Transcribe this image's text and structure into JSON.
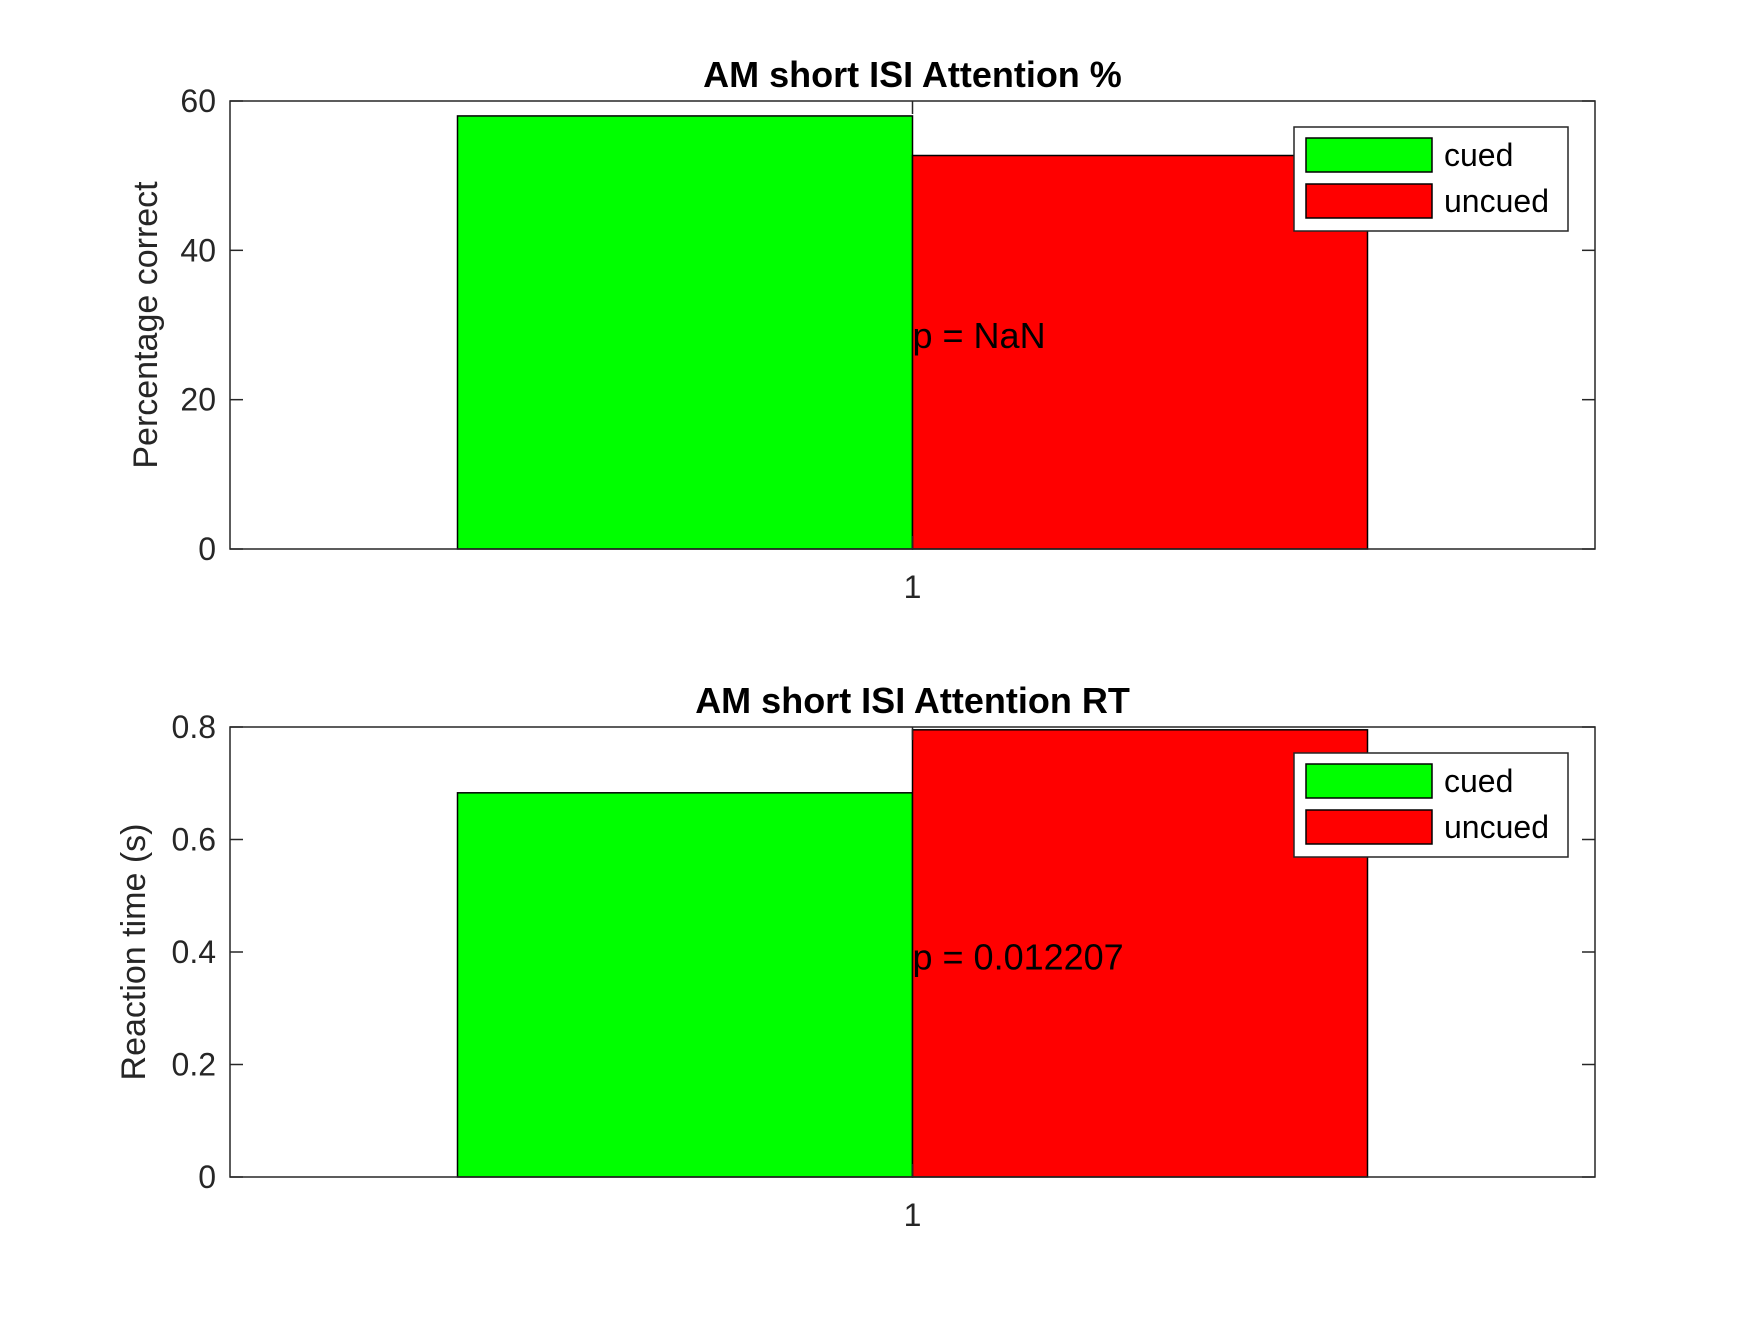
{
  "chart_data": [
    {
      "type": "bar",
      "title": "AM short ISI Attention %",
      "xlabel": "",
      "ylabel": "Percentage correct",
      "categories": [
        "1"
      ],
      "xticks": [
        "1"
      ],
      "ylim": [
        0,
        60
      ],
      "yticks": [
        "0",
        "20",
        "40",
        "60"
      ],
      "series": [
        {
          "name": "cued",
          "values": [
            58
          ],
          "color": "#00ff00"
        },
        {
          "name": "uncued",
          "values": [
            52.7
          ],
          "color": "#ff0000"
        }
      ],
      "annotation": {
        "text": "p = NaN",
        "x": 1,
        "y": 28.5
      },
      "legend": {
        "position": "top-right",
        "entries": [
          "cued",
          "uncued"
        ]
      },
      "grid": false
    },
    {
      "type": "bar",
      "title": "AM short ISI Attention RT",
      "xlabel": "",
      "ylabel": "Reaction time (s)",
      "categories": [
        "1"
      ],
      "xticks": [
        "1"
      ],
      "ylim": [
        0,
        0.8
      ],
      "yticks": [
        "0",
        "0.2",
        "0.4",
        "0.6",
        "0.8"
      ],
      "series": [
        {
          "name": "cued",
          "values": [
            0.683
          ],
          "color": "#00ff00"
        },
        {
          "name": "uncued",
          "values": [
            0.795
          ],
          "color": "#ff0000"
        }
      ],
      "annotation": {
        "text": "p = 0.012207",
        "x": 1,
        "y": 0.39
      },
      "legend": {
        "position": "top-right",
        "entries": [
          "cued",
          "uncued"
        ]
      },
      "grid": false
    }
  ]
}
